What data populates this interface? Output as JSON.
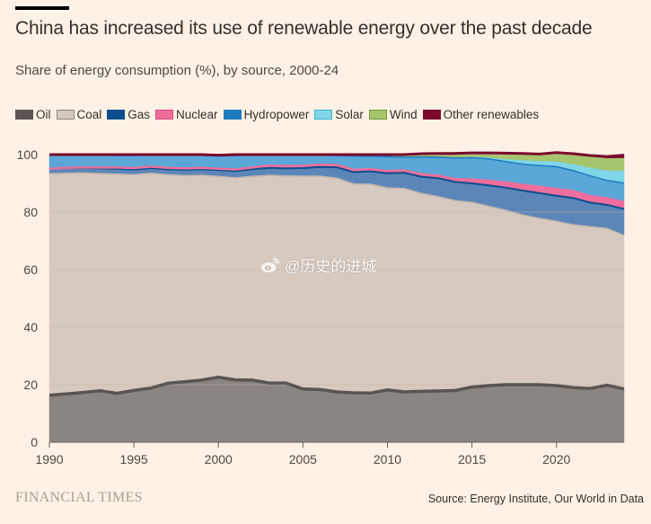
{
  "header": {
    "title": "China has increased its use of renewable energy over the past decade",
    "subtitle": "Share of energy consumption (%), by source, 2000-24"
  },
  "footer": {
    "brand": "FINANCIAL TIMES",
    "source": "Source: Energy Institute, Our World in Data"
  },
  "watermark": {
    "text": "@历史的进城",
    "icon": "weibo-icon"
  },
  "chart_data": {
    "type": "area",
    "stacked": true,
    "title": "China has increased its use of renewable energy over the past decade",
    "subtitle": "Share of energy consumption (%), by source, 2000-24",
    "xlabel": "",
    "ylabel": "",
    "xlim": [
      1990,
      2024
    ],
    "ylim": [
      0,
      100
    ],
    "xticks": [
      1990,
      1995,
      2000,
      2005,
      2010,
      2015,
      2020
    ],
    "yticks": [
      0,
      20,
      40,
      60,
      80,
      100
    ],
    "grid": true,
    "legend_position": "top-left",
    "x": [
      1990,
      1991,
      1992,
      1993,
      1994,
      1995,
      1996,
      1997,
      1998,
      1999,
      2000,
      2001,
      2002,
      2003,
      2004,
      2005,
      2006,
      2007,
      2008,
      2009,
      2010,
      2011,
      2012,
      2013,
      2014,
      2015,
      2016,
      2017,
      2018,
      2019,
      2020,
      2021,
      2022,
      2023,
      2024
    ],
    "series": [
      {
        "name": "Oil",
        "color": "#8a8580",
        "line_color": "#5a5552",
        "values": [
          16.3,
          16.8,
          17.3,
          17.9,
          17.0,
          18.0,
          18.8,
          20.5,
          21.0,
          21.6,
          22.6,
          21.7,
          21.6,
          20.6,
          20.6,
          18.5,
          18.3,
          17.5,
          17.2,
          17.1,
          18.2,
          17.5,
          17.7,
          17.8,
          18.0,
          19.2,
          19.7,
          20.0,
          20.0,
          20.0,
          19.7,
          19.0,
          18.7,
          19.8,
          18.5
        ]
      },
      {
        "name": "Coal",
        "color": "#d6c9bf",
        "values": [
          77.0,
          76.7,
          76.3,
          75.5,
          76.2,
          75.0,
          74.7,
          72.5,
          71.7,
          71.2,
          69.8,
          70.2,
          70.8,
          72.2,
          72.0,
          74.0,
          74.2,
          74.3,
          72.6,
          72.6,
          70.2,
          70.7,
          68.8,
          67.6,
          66.0,
          64.2,
          62.3,
          60.7,
          59.0,
          57.8,
          57.1,
          56.6,
          56.2,
          54.5,
          53.4
        ]
      },
      {
        "name": "Gas",
        "color": "#5c86b8",
        "line_color": "#0d4e8e",
        "values": [
          1.8,
          1.8,
          1.7,
          1.8,
          1.9,
          1.8,
          1.8,
          1.9,
          2.0,
          2.1,
          2.2,
          2.4,
          2.5,
          2.6,
          2.6,
          2.8,
          3.2,
          3.8,
          4.1,
          4.5,
          5.1,
          5.5,
          5.8,
          6.4,
          6.5,
          6.6,
          7.3,
          7.8,
          8.5,
          8.8,
          8.9,
          9.3,
          8.4,
          8.2,
          9.2
        ]
      },
      {
        "name": "Nuclear",
        "color": "#ef6e9b",
        "values": [
          0.0,
          0.1,
          0.2,
          0.3,
          0.4,
          0.5,
          0.5,
          0.5,
          0.5,
          0.5,
          0.5,
          0.5,
          0.6,
          0.8,
          0.8,
          0.8,
          0.8,
          0.8,
          0.8,
          0.7,
          0.8,
          0.8,
          0.9,
          0.9,
          1.0,
          1.3,
          1.6,
          1.8,
          2.0,
          2.2,
          2.3,
          2.4,
          2.3,
          2.3,
          2.4
        ]
      },
      {
        "name": "Hydropower",
        "color": "#5aa7d8",
        "line_color": "#1f7bbf",
        "values": [
          4.7,
          4.4,
          4.3,
          4.3,
          4.2,
          4.4,
          4.0,
          4.4,
          4.6,
          4.4,
          4.4,
          4.9,
          4.3,
          3.6,
          3.8,
          3.7,
          3.3,
          3.3,
          4.8,
          4.5,
          5.0,
          4.6,
          6.0,
          6.4,
          7.3,
          7.6,
          7.6,
          7.3,
          7.2,
          7.4,
          7.8,
          7.1,
          7.0,
          6.2,
          6.6
        ]
      },
      {
        "name": "Solar",
        "color": "#7fd6e8",
        "values": [
          0.0,
          0.0,
          0.0,
          0.0,
          0.0,
          0.0,
          0.0,
          0.0,
          0.0,
          0.0,
          0.0,
          0.0,
          0.0,
          0.0,
          0.0,
          0.0,
          0.0,
          0.0,
          0.0,
          0.0,
          0.0,
          0.0,
          0.1,
          0.1,
          0.2,
          0.4,
          0.6,
          0.9,
          1.4,
          1.6,
          1.9,
          2.3,
          2.9,
          3.5,
          4.4
        ]
      },
      {
        "name": "Wind",
        "color": "#a6c46c",
        "values": [
          0.0,
          0.0,
          0.0,
          0.0,
          0.0,
          0.0,
          0.0,
          0.0,
          0.0,
          0.0,
          0.0,
          0.0,
          0.0,
          0.0,
          0.0,
          0.0,
          0.1,
          0.1,
          0.2,
          0.3,
          0.4,
          0.6,
          0.8,
          1.0,
          1.1,
          1.2,
          1.5,
          1.9,
          2.1,
          2.3,
          2.8,
          3.5,
          3.9,
          4.3,
          4.4
        ]
      },
      {
        "name": "Other renewables",
        "color": "#7a0b2d",
        "values": [
          0.2,
          0.2,
          0.2,
          0.2,
          0.3,
          0.3,
          0.2,
          0.2,
          0.2,
          0.2,
          0.3,
          0.3,
          0.2,
          0.2,
          0.2,
          0.2,
          0.1,
          0.2,
          0.3,
          0.3,
          0.3,
          0.3,
          0.2,
          0.2,
          0.3,
          0.1,
          0.0,
          0.1,
          0.2,
          0.1,
          0.2,
          0.1,
          0.3,
          0.5,
          0.9
        ]
      }
    ]
  }
}
